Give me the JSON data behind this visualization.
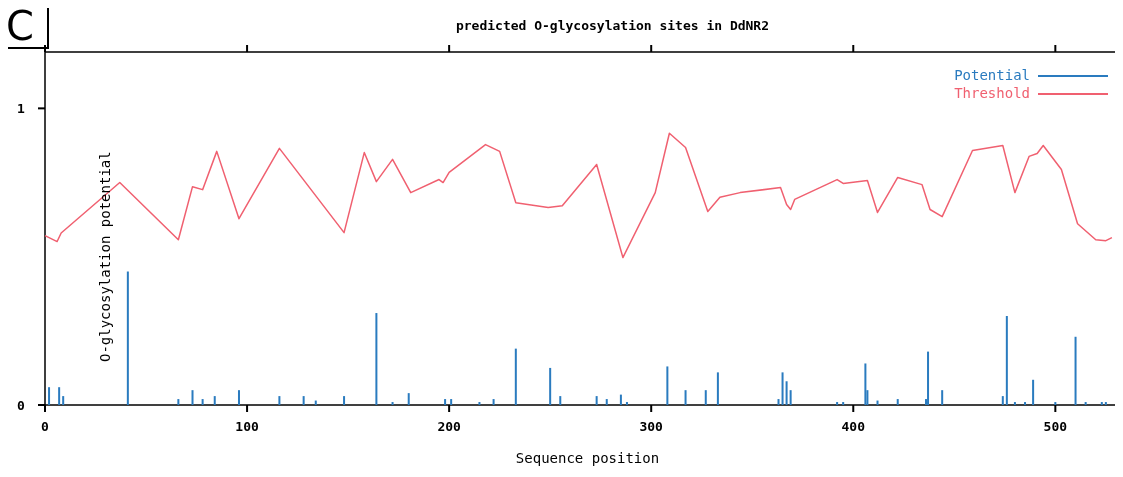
{
  "chart_data": {
    "type": "line",
    "title": "predicted O-glycosylation sites in DdNR2",
    "xlabel": "Sequence position",
    "ylabel": "O-glycosylation potential",
    "annotations": [
      "C"
    ],
    "xlim": [
      0,
      532
    ],
    "ylim": [
      0,
      1.19
    ],
    "xticks": [
      0,
      100,
      200,
      300,
      400,
      500
    ],
    "yticks": [
      0,
      1
    ],
    "legend": "top right",
    "grid": false,
    "series": [
      {
        "name": "Potential",
        "type": "bar",
        "color": "#2a7bbf",
        "x": [
          2,
          7,
          9,
          41,
          66,
          73,
          78,
          84,
          96,
          116,
          128,
          134,
          148,
          164,
          172,
          180,
          198,
          201,
          215,
          222,
          233,
          250,
          255,
          273,
          278,
          285,
          288,
          308,
          317,
          327,
          333,
          363,
          365,
          367,
          369,
          392,
          395,
          406,
          407,
          412,
          422,
          436,
          437,
          444,
          474,
          476,
          480,
          485,
          489,
          500,
          510,
          515,
          523,
          525
        ],
        "values": [
          0.06,
          0.06,
          0.03,
          0.45,
          0.02,
          0.05,
          0.02,
          0.03,
          0.05,
          0.03,
          0.03,
          0.015,
          0.03,
          0.31,
          0.01,
          0.04,
          0.02,
          0.02,
          0.01,
          0.02,
          0.19,
          0.125,
          0.03,
          0.03,
          0.02,
          0.035,
          0.01,
          0.13,
          0.05,
          0.05,
          0.11,
          0.02,
          0.11,
          0.08,
          0.05,
          0.01,
          0.01,
          0.14,
          0.05,
          0.015,
          0.02,
          0.02,
          0.18,
          0.05,
          0.03,
          0.3,
          0.01,
          0.01,
          0.085,
          0.01,
          0.23,
          0.01,
          0.01,
          0.01
        ]
      },
      {
        "name": "Threshold",
        "color": "#f06070",
        "x": [
          0,
          6,
          8,
          37,
          66,
          73,
          78,
          85,
          96,
          116,
          148,
          158,
          164,
          172,
          181,
          195,
          197,
          200,
          218,
          225,
          233,
          249,
          256,
          273,
          286,
          302,
          309,
          317,
          328,
          334,
          344,
          364,
          367,
          369,
          371,
          392,
          395,
          407,
          412,
          422,
          434,
          438,
          444,
          459,
          474,
          480,
          487,
          491,
          494,
          503,
          511,
          520,
          525,
          528
        ],
        "values": [
          0.571,
          0.551,
          0.58,
          0.75,
          0.557,
          0.736,
          0.726,
          0.855,
          0.628,
          0.865,
          0.581,
          0.851,
          0.753,
          0.828,
          0.716,
          0.76,
          0.75,
          0.784,
          0.878,
          0.855,
          0.682,
          0.666,
          0.672,
          0.811,
          0.497,
          0.716,
          0.916,
          0.868,
          0.652,
          0.7,
          0.716,
          0.733,
          0.676,
          0.659,
          0.693,
          0.76,
          0.747,
          0.757,
          0.649,
          0.767,
          0.743,
          0.659,
          0.635,
          0.858,
          0.875,
          0.716,
          0.838,
          0.848,
          0.875,
          0.794,
          0.611,
          0.557,
          0.554,
          0.564
        ]
      }
    ]
  }
}
